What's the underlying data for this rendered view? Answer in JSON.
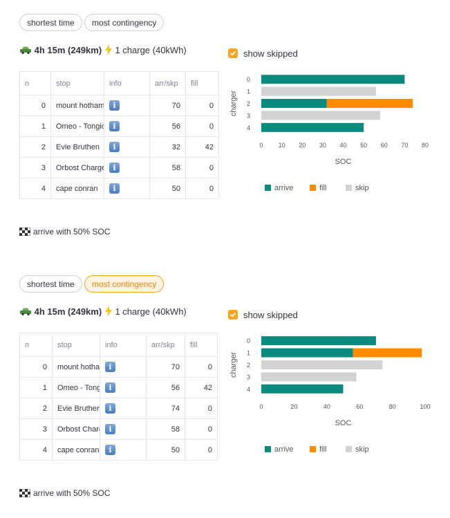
{
  "sections": [
    {
      "tabs": [
        {
          "label": "shortest time",
          "active": true
        },
        {
          "label": "most contingency",
          "active": false
        }
      ],
      "summary": {
        "trip": "4h 15m (249km)",
        "charge": "1 charge (40kWh)"
      },
      "show_skipped_label": "show skipped",
      "show_skipped_checked": true,
      "table": {
        "columns": [
          "n",
          "stop",
          "info",
          "arr/skp",
          "fill"
        ],
        "rows": [
          {
            "n": "0",
            "stop": "mount hotham",
            "info": "i",
            "arr": "70",
            "fill": "0"
          },
          {
            "n": "1",
            "stop": "Omeo - Tongio",
            "info": "i",
            "arr": "56",
            "fill": "0"
          },
          {
            "n": "2",
            "stop": "Evie Bruthen",
            "info": "i",
            "arr": "32",
            "fill": "42"
          },
          {
            "n": "3",
            "stop": "Orbost Charger",
            "info": "i",
            "arr": "58",
            "fill": "0"
          },
          {
            "n": "4",
            "stop": "cape conran",
            "info": "i",
            "arr": "50",
            "fill": "0"
          }
        ]
      },
      "chart_data": {
        "type": "bar",
        "orientation": "horizontal",
        "stacked": true,
        "categories": [
          "0",
          "1",
          "2",
          "3",
          "4"
        ],
        "series": [
          {
            "name": "arrive",
            "color": "#0b8a7e",
            "values": [
              70,
              0,
              32,
              0,
              50
            ]
          },
          {
            "name": "fill",
            "color": "#ff8c00",
            "values": [
              0,
              0,
              42,
              0,
              0
            ]
          },
          {
            "name": "skip",
            "color": "#d3d3d3",
            "values": [
              0,
              56,
              0,
              58,
              0
            ]
          }
        ],
        "xlabel": "SOC",
        "ylabel": "charger",
        "xlim": [
          0,
          80
        ],
        "xticks": [
          "0",
          "10",
          "20",
          "30",
          "40",
          "50",
          "60",
          "70",
          "80"
        ],
        "legend": "bottom"
      },
      "footer": "arrive with 50% SOC"
    },
    {
      "tabs": [
        {
          "label": "shortest time",
          "active": false
        },
        {
          "label": "most contingency",
          "active": true
        }
      ],
      "summary": {
        "trip": "4h 15m (249km)",
        "charge": "1 charge (40kWh)"
      },
      "show_skipped_label": "show skipped",
      "show_skipped_checked": true,
      "table": {
        "columns": [
          "n",
          "stop",
          "info",
          "arr/skp",
          "fill"
        ],
        "rows": [
          {
            "n": "0",
            "stop": "mount hotham",
            "info": "i",
            "arr": "70",
            "fill": "0"
          },
          {
            "n": "1",
            "stop": "Omeo - Tongio",
            "info": "i",
            "arr": "56",
            "fill": "42"
          },
          {
            "n": "2",
            "stop": "Evie Bruthen",
            "info": "i",
            "arr": "74",
            "fill": "0"
          },
          {
            "n": "3",
            "stop": "Orbost Charger",
            "info": "i",
            "arr": "58",
            "fill": "0"
          },
          {
            "n": "4",
            "stop": "cape conran",
            "info": "i",
            "arr": "50",
            "fill": "0"
          }
        ]
      },
      "chart_data": {
        "type": "bar",
        "orientation": "horizontal",
        "stacked": true,
        "categories": [
          "0",
          "1",
          "2",
          "3",
          "4"
        ],
        "series": [
          {
            "name": "arrive",
            "color": "#0b8a7e",
            "values": [
              70,
              56,
              0,
              0,
              50
            ]
          },
          {
            "name": "fill",
            "color": "#ff8c00",
            "values": [
              0,
              42,
              0,
              0,
              0
            ]
          },
          {
            "name": "skip",
            "color": "#d3d3d3",
            "values": [
              0,
              0,
              74,
              58,
              0
            ]
          }
        ],
        "xlabel": "SOC",
        "ylabel": "charger",
        "xlim": [
          0,
          100
        ],
        "xticks": [
          "0",
          "20",
          "40",
          "60",
          "80",
          "100"
        ],
        "legend": "bottom"
      },
      "footer": "arrive with 50% SOC"
    }
  ]
}
